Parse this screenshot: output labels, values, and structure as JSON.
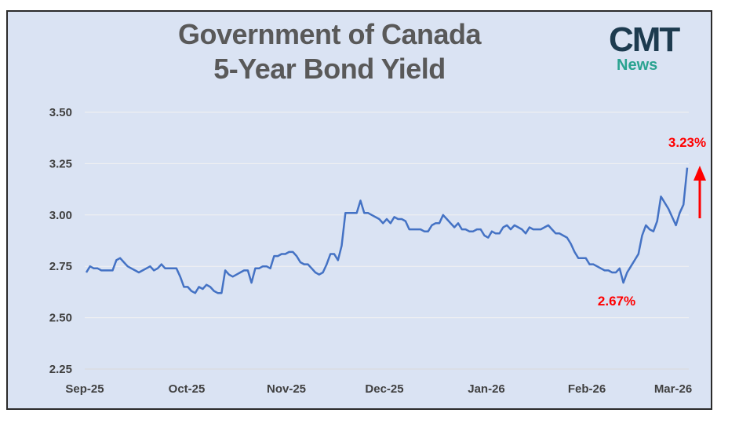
{
  "chart_data": {
    "type": "line",
    "title_line1": "Government of Canada",
    "title_line2": "5-Year Bond Yield",
    "logo_main": "CMT",
    "logo_sub": "News",
    "ylim": [
      2.25,
      3.5
    ],
    "yticks": [
      "3.50",
      "3.25",
      "3.00",
      "2.75",
      "2.50",
      "2.25"
    ],
    "ytick_values": [
      3.5,
      3.25,
      3.0,
      2.75,
      2.5,
      2.25
    ],
    "xticks": [
      "Sep-25",
      "Oct-25",
      "Nov-25",
      "Dec-25",
      "Jan-26",
      "Feb-26",
      "Mar-26"
    ],
    "grid": true,
    "line_color": "#4472c4",
    "annotation_color": "#ff0000",
    "annotations": {
      "high_label": "3.23%",
      "low_label": "2.67%"
    },
    "series": [
      {
        "values": [
          2.72,
          2.75,
          2.74,
          2.74,
          2.73,
          2.73,
          2.73,
          2.73,
          2.78,
          2.79,
          2.77,
          2.75,
          2.74,
          2.73,
          2.72,
          2.73,
          2.74,
          2.75,
          2.73,
          2.74,
          2.76,
          2.74,
          2.74,
          2.74,
          2.74,
          2.7,
          2.65,
          2.65,
          2.63,
          2.62,
          2.65,
          2.64,
          2.66,
          2.65,
          2.63,
          2.62,
          2.62,
          2.73,
          2.71,
          2.7,
          2.71,
          2.72,
          2.73,
          2.73,
          2.67,
          2.74,
          2.74,
          2.75,
          2.75,
          2.74,
          2.8,
          2.8,
          2.81,
          2.81,
          2.82,
          2.82,
          2.8,
          2.77,
          2.76,
          2.76,
          2.74,
          2.72,
          2.71,
          2.72,
          2.76,
          2.81,
          2.81,
          2.78,
          2.85,
          3.01,
          3.01,
          3.01,
          3.01,
          3.07,
          3.01,
          3.01,
          3.0,
          2.99,
          2.98,
          2.96,
          2.98,
          2.96,
          2.99,
          2.98,
          2.98,
          2.97,
          2.93,
          2.93,
          2.93,
          2.93,
          2.92,
          2.92,
          2.95,
          2.96,
          2.96,
          3.0,
          2.98,
          2.96,
          2.94,
          2.96,
          2.93,
          2.93,
          2.92,
          2.92,
          2.93,
          2.93,
          2.9,
          2.89,
          2.92,
          2.91,
          2.91,
          2.94,
          2.95,
          2.93,
          2.95,
          2.94,
          2.93,
          2.91,
          2.94,
          2.93,
          2.93,
          2.93,
          2.94,
          2.95,
          2.93,
          2.91,
          2.91,
          2.9,
          2.89,
          2.86,
          2.82,
          2.79,
          2.79,
          2.79,
          2.76,
          2.76,
          2.75,
          2.74,
          2.73,
          2.73,
          2.72,
          2.72,
          2.74,
          2.67,
          2.72,
          2.75,
          2.78,
          2.81,
          2.9,
          2.95,
          2.93,
          2.92,
          2.97,
          3.09,
          3.06,
          3.03,
          2.99,
          2.95,
          3.01,
          3.05,
          3.23
        ]
      }
    ]
  }
}
